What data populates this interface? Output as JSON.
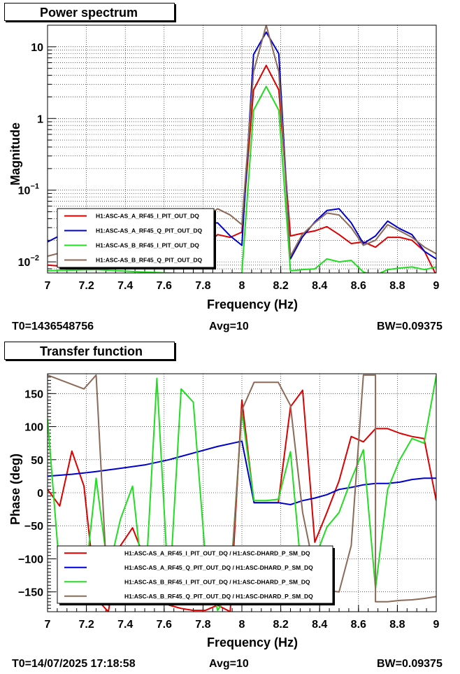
{
  "chart_data": [
    {
      "type": "line",
      "title": "Power spectrum",
      "xlabel": "Frequency (Hz)",
      "ylabel": "Magnitude",
      "xlim": [
        7,
        9
      ],
      "ylim": [
        0.007,
        20
      ],
      "yscale": "log",
      "grid": true,
      "legend_position": "bottom-left",
      "x_ticks": [
        "7",
        "7.2",
        "7.4",
        "7.6",
        "7.8",
        "8",
        "8.2",
        "8.4",
        "8.6",
        "8.8",
        "9"
      ],
      "y_ticks": [
        {
          "v": 0.01,
          "label": "10^-2"
        },
        {
          "v": 0.1,
          "label": "10^-1"
        },
        {
          "v": 1,
          "label": "1"
        },
        {
          "v": 10,
          "label": "10"
        }
      ],
      "series": [
        {
          "name": "H1:ASC-AS_A_RF45_I_PIT_OUT_DQ",
          "color": "#dd0000",
          "points": [
            [
              7.0,
              0.009
            ],
            [
              7.25,
              0.008
            ],
            [
              7.5,
              0.0085
            ],
            [
              7.75,
              0.012
            ],
            [
              7.875,
              0.024
            ],
            [
              7.94,
              0.022
            ],
            [
              8.0,
              0.026
            ],
            [
              8.06,
              2.5
            ],
            [
              8.125,
              5.5
            ],
            [
              8.19,
              2.5
            ],
            [
              8.25,
              0.023
            ],
            [
              8.31,
              0.025
            ],
            [
              8.375,
              0.027
            ],
            [
              8.4375,
              0.031
            ],
            [
              8.5,
              0.024
            ],
            [
              8.5625,
              0.018
            ],
            [
              8.625,
              0.019
            ],
            [
              8.6875,
              0.016
            ],
            [
              8.75,
              0.022
            ],
            [
              8.8125,
              0.022
            ],
            [
              8.875,
              0.02
            ],
            [
              8.94,
              0.014
            ],
            [
              9.0,
              0.0065
            ]
          ]
        },
        {
          "name": "H1:ASC-AS_A_RF45_Q_PIT_OUT_DQ",
          "color": "#0000cc",
          "points": [
            [
              7.0,
              0.019
            ],
            [
              7.06,
              0.023
            ],
            [
              7.25,
              0.02
            ],
            [
              7.5,
              0.022
            ],
            [
              7.75,
              0.03
            ],
            [
              7.81,
              0.034
            ],
            [
              7.875,
              0.035
            ],
            [
              7.94,
              0.023
            ],
            [
              8.0,
              0.017
            ],
            [
              8.06,
              7.8
            ],
            [
              8.125,
              16
            ],
            [
              8.19,
              8.0
            ],
            [
              8.25,
              0.011
            ],
            [
              8.31,
              0.022
            ],
            [
              8.375,
              0.036
            ],
            [
              8.4375,
              0.052
            ],
            [
              8.5,
              0.055
            ],
            [
              8.5625,
              0.035
            ],
            [
              8.625,
              0.018
            ],
            [
              8.6875,
              0.023
            ],
            [
              8.75,
              0.037
            ],
            [
              8.8125,
              0.029
            ],
            [
              8.875,
              0.024
            ],
            [
              8.94,
              0.014
            ],
            [
              9.0,
              0.011
            ]
          ]
        },
        {
          "name": "H1:ASC-AS_B_RF45_I_PIT_OUT_DQ",
          "color": "#22dd22",
          "points": [
            [
              7.0,
              0.0075
            ],
            [
              7.25,
              0.0078
            ],
            [
              7.5,
              0.0072
            ],
            [
              7.75,
              0.0068
            ],
            [
              8.0,
              0.007
            ],
            [
              8.06,
              1.3
            ],
            [
              8.125,
              2.8
            ],
            [
              8.19,
              1.3
            ],
            [
              8.25,
              0.0075
            ],
            [
              8.31,
              0.0078
            ],
            [
              8.375,
              0.008
            ],
            [
              8.4375,
              0.011
            ],
            [
              8.5,
              0.01
            ],
            [
              8.5625,
              0.0105
            ],
            [
              8.625,
              0.0072
            ],
            [
              8.6875,
              0.0065
            ],
            [
              8.75,
              0.0078
            ],
            [
              8.8125,
              0.0082
            ],
            [
              8.875,
              0.0085
            ],
            [
              8.94,
              0.0078
            ],
            [
              9.0,
              0.0085
            ]
          ]
        },
        {
          "name": "H1:ASC-AS_B_RF45_Q_PIT_OUT_DQ",
          "color": "#8c6a58",
          "points": [
            [
              7.0,
              0.012
            ],
            [
              7.25,
              0.018
            ],
            [
              7.5,
              0.025
            ],
            [
              7.75,
              0.032
            ],
            [
              7.81,
              0.042
            ],
            [
              7.875,
              0.055
            ],
            [
              7.94,
              0.045
            ],
            [
              8.0,
              0.033
            ],
            [
              8.06,
              4.5
            ],
            [
              8.125,
              20
            ],
            [
              8.19,
              4.5
            ],
            [
              8.25,
              0.012
            ],
            [
              8.31,
              0.024
            ],
            [
              8.375,
              0.035
            ],
            [
              8.4375,
              0.048
            ],
            [
              8.5,
              0.045
            ],
            [
              8.5625,
              0.03
            ],
            [
              8.625,
              0.017
            ],
            [
              8.6875,
              0.02
            ],
            [
              8.75,
              0.033
            ],
            [
              8.8125,
              0.027
            ],
            [
              8.875,
              0.022
            ],
            [
              8.94,
              0.016
            ],
            [
              9.0,
              0.013
            ]
          ]
        }
      ]
    },
    {
      "type": "line",
      "title": "Transfer function",
      "xlabel": "Frequency (Hz)",
      "ylabel": "Phase (deg)",
      "xlim": [
        7,
        9
      ],
      "ylim": [
        -180,
        180
      ],
      "grid": true,
      "legend_position": "bottom-left",
      "x_ticks": [
        "7",
        "7.2",
        "7.4",
        "7.6",
        "7.8",
        "8",
        "8.2",
        "8.4",
        "8.6",
        "8.8",
        "9"
      ],
      "y_ticks": [
        "-150",
        "-100",
        "-50",
        "0",
        "50",
        "100",
        "150"
      ],
      "series": [
        {
          "name": "H1:ASC-AS_A_RF45_I_PIT_OUT_DQ / H1:ASC-DHARD_P_SM_DQ",
          "color": "#dd0000",
          "points": [
            [
              7.0,
              5
            ],
            [
              7.0625,
              -20
            ],
            [
              7.125,
              63
            ],
            [
              7.1875,
              10
            ],
            [
              7.25,
              -160
            ],
            [
              7.3125,
              -180
            ],
            [
              7.375,
              -80
            ],
            [
              7.4375,
              -53
            ],
            [
              7.5,
              -100
            ],
            [
              7.5625,
              -150
            ],
            [
              7.625,
              -170
            ],
            [
              7.6875,
              -175
            ],
            [
              7.75,
              -178
            ],
            [
              7.8125,
              -178
            ],
            [
              7.875,
              -170
            ],
            [
              7.94,
              -180
            ],
            [
              8.0,
              140
            ],
            [
              8.0625,
              -15
            ],
            [
              8.125,
              -15
            ],
            [
              8.1875,
              -15
            ],
            [
              8.25,
              130
            ],
            [
              8.3125,
              155
            ],
            [
              8.375,
              -75
            ],
            [
              8.4375,
              -30
            ],
            [
              8.5,
              18
            ],
            [
              8.5625,
              85
            ],
            [
              8.625,
              77
            ],
            [
              8.6875,
              97
            ],
            [
              8.75,
              97
            ],
            [
              8.8125,
              90
            ],
            [
              8.875,
              85
            ],
            [
              8.9375,
              82
            ],
            [
              9.0,
              -12
            ]
          ]
        },
        {
          "name": "H1:ASC-AS_A_RF45_Q_PIT_OUT_DQ / H1:ASC-DHARD_P_SM_DQ",
          "color": "#0000cc",
          "points": [
            [
              7.0,
              25
            ],
            [
              7.125,
              28
            ],
            [
              7.25,
              32
            ],
            [
              7.375,
              37
            ],
            [
              7.5,
              42
            ],
            [
              7.625,
              50
            ],
            [
              7.75,
              60
            ],
            [
              7.875,
              70
            ],
            [
              8.0,
              78
            ],
            [
              8.0625,
              -15
            ],
            [
              8.125,
              -15
            ],
            [
              8.1875,
              -15
            ],
            [
              8.25,
              -18
            ],
            [
              8.3125,
              -12
            ],
            [
              8.375,
              -8
            ],
            [
              8.4375,
              -3
            ],
            [
              8.5,
              5
            ],
            [
              8.5625,
              8
            ],
            [
              8.625,
              12
            ],
            [
              8.6875,
              14
            ],
            [
              8.75,
              14
            ],
            [
              8.8125,
              16
            ],
            [
              8.875,
              20
            ],
            [
              8.9375,
              22
            ],
            [
              9.0,
              22
            ]
          ]
        },
        {
          "name": "H1:ASC-AS_B_RF45_I_PIT_OUT_DQ / H1:ASC-DHARD_P_SM_DQ",
          "color": "#22dd22",
          "points": [
            [
              7.0,
              112
            ],
            [
              7.0625,
              -120
            ],
            [
              7.125,
              -160
            ],
            [
              7.1875,
              -150
            ],
            [
              7.25,
              22
            ],
            [
              7.3125,
              -120
            ],
            [
              7.375,
              -40
            ],
            [
              7.4375,
              10
            ],
            [
              7.5,
              -160
            ],
            [
              7.5625,
              173
            ],
            [
              7.625,
              -160
            ],
            [
              7.6875,
              157
            ],
            [
              7.75,
              137
            ],
            [
              7.8125,
              -100
            ],
            [
              7.875,
              -178
            ],
            [
              7.9375,
              -150
            ],
            [
              8.0,
              122
            ],
            [
              8.0625,
              -12
            ],
            [
              8.125,
              -12
            ],
            [
              8.1875,
              -10
            ],
            [
              8.25,
              62
            ],
            [
              8.3125,
              -140
            ],
            [
              8.375,
              -100
            ],
            [
              8.4375,
              -52
            ],
            [
              8.5,
              -30
            ],
            [
              8.5625,
              20
            ],
            [
              8.625,
              65
            ],
            [
              8.6875,
              -145
            ],
            [
              8.75,
              5
            ],
            [
              8.8125,
              50
            ],
            [
              8.875,
              82
            ],
            [
              8.9375,
              75
            ],
            [
              9.0,
              177
            ]
          ]
        },
        {
          "name": "H1:ASC-AS_B_RF45_Q_PIT_OUT_DQ / H1:ASC-DHARD_P_SM_DQ",
          "color": "#8c6a58",
          "points": [
            [
              7.0,
              178
            ],
            [
              7.1875,
              157
            ],
            [
              7.25,
              178
            ],
            [
              7.3125,
              -170
            ],
            [
              7.375,
              -150
            ],
            [
              7.4375,
              -145
            ],
            [
              7.5,
              -148
            ],
            [
              7.5625,
              -150
            ],
            [
              7.625,
              -155
            ],
            [
              7.6875,
              -160
            ],
            [
              7.75,
              -165
            ],
            [
              7.8125,
              -168
            ],
            [
              7.875,
              -160
            ],
            [
              7.9375,
              -155
            ],
            [
              8.0,
              125
            ],
            [
              8.0625,
              167
            ],
            [
              8.125,
              167
            ],
            [
              8.1875,
              167
            ],
            [
              8.25,
              132
            ],
            [
              8.3125,
              -30
            ],
            [
              8.375,
              -120
            ],
            [
              8.4375,
              -148
            ],
            [
              8.5,
              -150
            ],
            [
              8.5625,
              -80
            ],
            [
              8.625,
              178
            ],
            [
              8.6875,
              178
            ],
            [
              8.6875,
              -165
            ],
            [
              8.75,
              -165
            ],
            [
              8.8125,
              -163
            ],
            [
              8.875,
              -162
            ],
            [
              8.9375,
              -160
            ],
            [
              9.0,
              -157
            ]
          ]
        }
      ]
    }
  ],
  "footer_top": {
    "t0": "T0=1436548756",
    "avg": "Avg=10",
    "bw": "BW=0.09375"
  },
  "footer_bot": {
    "t0": "T0=14/07/2025 17:18:58",
    "avg": "Avg=10",
    "bw": "BW=0.09375"
  }
}
